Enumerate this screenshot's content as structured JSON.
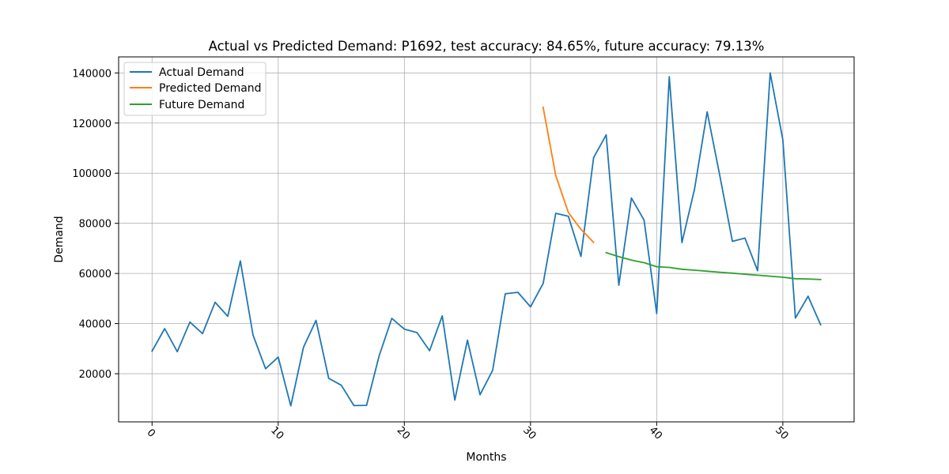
{
  "chart_data": {
    "type": "line",
    "title": "Actual vs Predicted Demand: P1692, test accuracy: 84.65%, future accuracy: 79.13%",
    "xlabel": "Months",
    "ylabel": "Demand",
    "xlim": [
      -2.65,
      55.65
    ],
    "ylim": [
      800,
      146400
    ],
    "x_ticks": [
      0,
      10,
      20,
      30,
      40,
      50
    ],
    "x_tick_labels": [
      "0",
      "10",
      "20",
      "30",
      "40",
      "50"
    ],
    "y_ticks": [
      20000,
      40000,
      60000,
      80000,
      100000,
      120000,
      140000
    ],
    "y_tick_labels": [
      "20000",
      "40000",
      "60000",
      "80000",
      "100000",
      "120000",
      "140000"
    ],
    "grid": true,
    "legend_position": "top-left",
    "series": [
      {
        "name": "Actual Demand",
        "color": "#1f77b4",
        "x": [
          0,
          1,
          2,
          3,
          4,
          5,
          6,
          7,
          8,
          9,
          10,
          11,
          12,
          13,
          14,
          15,
          16,
          17,
          18,
          19,
          20,
          21,
          22,
          23,
          24,
          25,
          26,
          27,
          28,
          29,
          30,
          31,
          32,
          33,
          34,
          35,
          36,
          37,
          38,
          39,
          40,
          41,
          42,
          43,
          44,
          45,
          46,
          47,
          48,
          49,
          50,
          51,
          52,
          53
        ],
        "values": [
          29000,
          38000,
          28800,
          40600,
          36000,
          48500,
          42900,
          65000,
          35500,
          22000,
          26600,
          7200,
          30500,
          41300,
          18200,
          15400,
          7300,
          7400,
          27100,
          42100,
          37800,
          36400,
          29200,
          43100,
          9500,
          33400,
          11600,
          21400,
          51900,
          52500,
          46700,
          56000,
          84000,
          82800,
          66800,
          106200,
          115300,
          55300,
          90100,
          81300,
          44000,
          138500,
          72300,
          93600,
          124500,
          99200,
          72800,
          74100,
          61100,
          140000,
          113300,
          42200,
          50900,
          39500
        ]
      },
      {
        "name": "Predicted Demand",
        "color": "#ff7f0e",
        "x": [
          31,
          32,
          33,
          34,
          35
        ],
        "values": [
          126300,
          99100,
          84300,
          77600,
          72400
        ]
      },
      {
        "name": "Future Demand",
        "color": "#2ca02c",
        "x": [
          36,
          37,
          38,
          39,
          40,
          41,
          42,
          43,
          44,
          45,
          46,
          47,
          48,
          49,
          50,
          51,
          52,
          53
        ],
        "values": [
          68300,
          66700,
          65300,
          64300,
          62700,
          62400,
          61700,
          61300,
          60900,
          60500,
          60100,
          59700,
          59300,
          58900,
          58500,
          57900,
          57800,
          57600
        ]
      }
    ]
  }
}
